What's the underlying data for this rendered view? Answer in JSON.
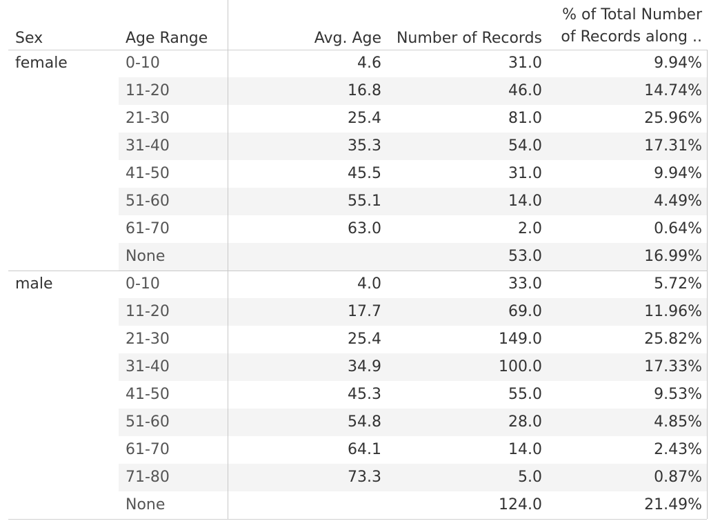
{
  "headers": {
    "sex": "Sex",
    "age_range": "Age Range",
    "avg_age": "Avg. Age",
    "num_records": "Number of Records",
    "pct_line1": "% of Total Number",
    "pct_line2": "of Records along .."
  },
  "groups": [
    {
      "sex": "female",
      "rows": [
        {
          "age": "0-10",
          "avg": "4.6",
          "records": "31.0",
          "pct": "9.94%"
        },
        {
          "age": "11-20",
          "avg": "16.8",
          "records": "46.0",
          "pct": "14.74%"
        },
        {
          "age": "21-30",
          "avg": "25.4",
          "records": "81.0",
          "pct": "25.96%"
        },
        {
          "age": "31-40",
          "avg": "35.3",
          "records": "54.0",
          "pct": "17.31%"
        },
        {
          "age": "41-50",
          "avg": "45.5",
          "records": "31.0",
          "pct": "9.94%"
        },
        {
          "age": "51-60",
          "avg": "55.1",
          "records": "14.0",
          "pct": "4.49%"
        },
        {
          "age": "61-70",
          "avg": "63.0",
          "records": "2.0",
          "pct": "0.64%"
        },
        {
          "age": "None",
          "avg": "",
          "records": "53.0",
          "pct": "16.99%"
        }
      ]
    },
    {
      "sex": "male",
      "rows": [
        {
          "age": "0-10",
          "avg": "4.0",
          "records": "33.0",
          "pct": "5.72%"
        },
        {
          "age": "11-20",
          "avg": "17.7",
          "records": "69.0",
          "pct": "11.96%"
        },
        {
          "age": "21-30",
          "avg": "25.4",
          "records": "149.0",
          "pct": "25.82%"
        },
        {
          "age": "31-40",
          "avg": "34.9",
          "records": "100.0",
          "pct": "17.33%"
        },
        {
          "age": "41-50",
          "avg": "45.3",
          "records": "55.0",
          "pct": "9.53%"
        },
        {
          "age": "51-60",
          "avg": "54.8",
          "records": "28.0",
          "pct": "4.85%"
        },
        {
          "age": "61-70",
          "avg": "64.1",
          "records": "14.0",
          "pct": "2.43%"
        },
        {
          "age": "71-80",
          "avg": "73.3",
          "records": "5.0",
          "pct": "0.87%"
        },
        {
          "age": "None",
          "avg": "",
          "records": "124.0",
          "pct": "21.49%"
        }
      ]
    }
  ],
  "chart_data": {
    "type": "table",
    "columns": [
      "Sex",
      "Age Range",
      "Avg. Age",
      "Number of Records",
      "% of Total Number of Records along .."
    ],
    "rows": [
      [
        "female",
        "0-10",
        4.6,
        31.0,
        "9.94%"
      ],
      [
        "female",
        "11-20",
        16.8,
        46.0,
        "14.74%"
      ],
      [
        "female",
        "21-30",
        25.4,
        81.0,
        "25.96%"
      ],
      [
        "female",
        "31-40",
        35.3,
        54.0,
        "17.31%"
      ],
      [
        "female",
        "41-50",
        45.5,
        31.0,
        "9.94%"
      ],
      [
        "female",
        "51-60",
        55.1,
        14.0,
        "4.49%"
      ],
      [
        "female",
        "61-70",
        63.0,
        2.0,
        "0.64%"
      ],
      [
        "female",
        "None",
        null,
        53.0,
        "16.99%"
      ],
      [
        "male",
        "0-10",
        4.0,
        33.0,
        "5.72%"
      ],
      [
        "male",
        "11-20",
        17.7,
        69.0,
        "11.96%"
      ],
      [
        "male",
        "21-30",
        25.4,
        149.0,
        "25.82%"
      ],
      [
        "male",
        "31-40",
        34.9,
        100.0,
        "17.33%"
      ],
      [
        "male",
        "41-50",
        45.3,
        55.0,
        "9.53%"
      ],
      [
        "male",
        "51-60",
        54.8,
        28.0,
        "4.85%"
      ],
      [
        "male",
        "61-70",
        64.1,
        14.0,
        "2.43%"
      ],
      [
        "male",
        "71-80",
        73.3,
        5.0,
        "0.87%"
      ],
      [
        "male",
        "None",
        null,
        124.0,
        "21.49%"
      ]
    ]
  }
}
